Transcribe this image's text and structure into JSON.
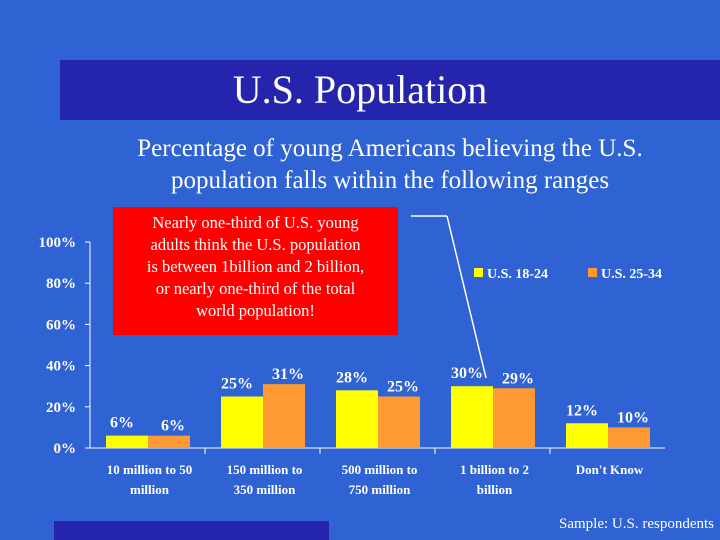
{
  "slide": {
    "title": "U.S. Population",
    "subtitle_line1": "Percentage of young Americans believing the U.S.",
    "subtitle_line2": "population falls within the following ranges",
    "callout_lines": [
      "Nearly one-third of U.S. young",
      "adults think the U.S. population",
      "is between 1billion and 2 billion,",
      "or nearly one-third of the total",
      "world population!"
    ],
    "footer": "Sample: U.S. respondents"
  },
  "colors": {
    "series_18_24": "#ffff00",
    "series_25_34": "#ff9933",
    "background": "#2f62d3",
    "callout": "#ff0000"
  },
  "chart_data": {
    "type": "bar",
    "categories": [
      [
        "10 million to 50",
        "million"
      ],
      [
        "150 million to",
        "350 million"
      ],
      [
        "500 million to",
        "750 million"
      ],
      [
        "1 billion to 2",
        "billion"
      ],
      [
        "Don't Know",
        ""
      ]
    ],
    "series": [
      {
        "name": "U.S. 18-24",
        "values": [
          6,
          25,
          28,
          30,
          12
        ],
        "labels": [
          "6%",
          "25%",
          "28%",
          "30%",
          "12%"
        ]
      },
      {
        "name": "U.S. 25-34",
        "values": [
          6,
          31,
          25,
          29,
          10
        ],
        "labels": [
          "6%",
          "31%",
          "25%",
          "29%",
          "10%"
        ]
      }
    ],
    "ylim": [
      0,
      100
    ],
    "yticks": [
      0,
      20,
      40,
      60,
      80,
      100
    ],
    "ytick_labels": [
      "0%",
      "20%",
      "40%",
      "60%",
      "80%",
      "100%"
    ],
    "legend": "top-right",
    "grid": false
  }
}
